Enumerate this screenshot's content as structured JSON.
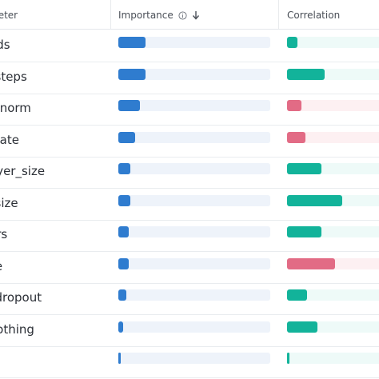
{
  "header": {
    "parameter": "meter",
    "importance": "Importance",
    "correlation": "Correlation",
    "info_icon": "info-icon",
    "sort_icon": "arrow-down-icon"
  },
  "colors": {
    "importance": "#2f7ccf",
    "positive": "#12b39a",
    "negative": "#e26b85",
    "positive_track": "#eefaf8",
    "negative_track": "#fdf0f2",
    "importance_track": "#eef3fa"
  },
  "rows": [
    {
      "name": "ads",
      "importance": 0.18,
      "correlation": 0.1
    },
    {
      "name": "_steps",
      "importance": 0.18,
      "correlation": 0.36
    },
    {
      "name": "ipnorm",
      "importance": 0.14,
      "correlation": -0.14
    },
    {
      "name": "_rate",
      "importance": 0.11,
      "correlation": -0.18
    },
    {
      "name": "ayer_size",
      "importance": 0.08,
      "correlation": 0.33
    },
    {
      "name": "_size",
      "importance": 0.08,
      "correlation": 0.53
    },
    {
      "name": "ers",
      "importance": 0.07,
      "correlation": 0.33
    },
    {
      "name": "ze",
      "importance": 0.07,
      "correlation": -0.46
    },
    {
      "name": "_dropout",
      "importance": 0.05,
      "correlation": 0.19
    },
    {
      "name": "oothing",
      "importance": 0.03,
      "correlation": 0.29
    },
    {
      "name": "",
      "importance": 0.01,
      "correlation": 0.02
    }
  ]
}
